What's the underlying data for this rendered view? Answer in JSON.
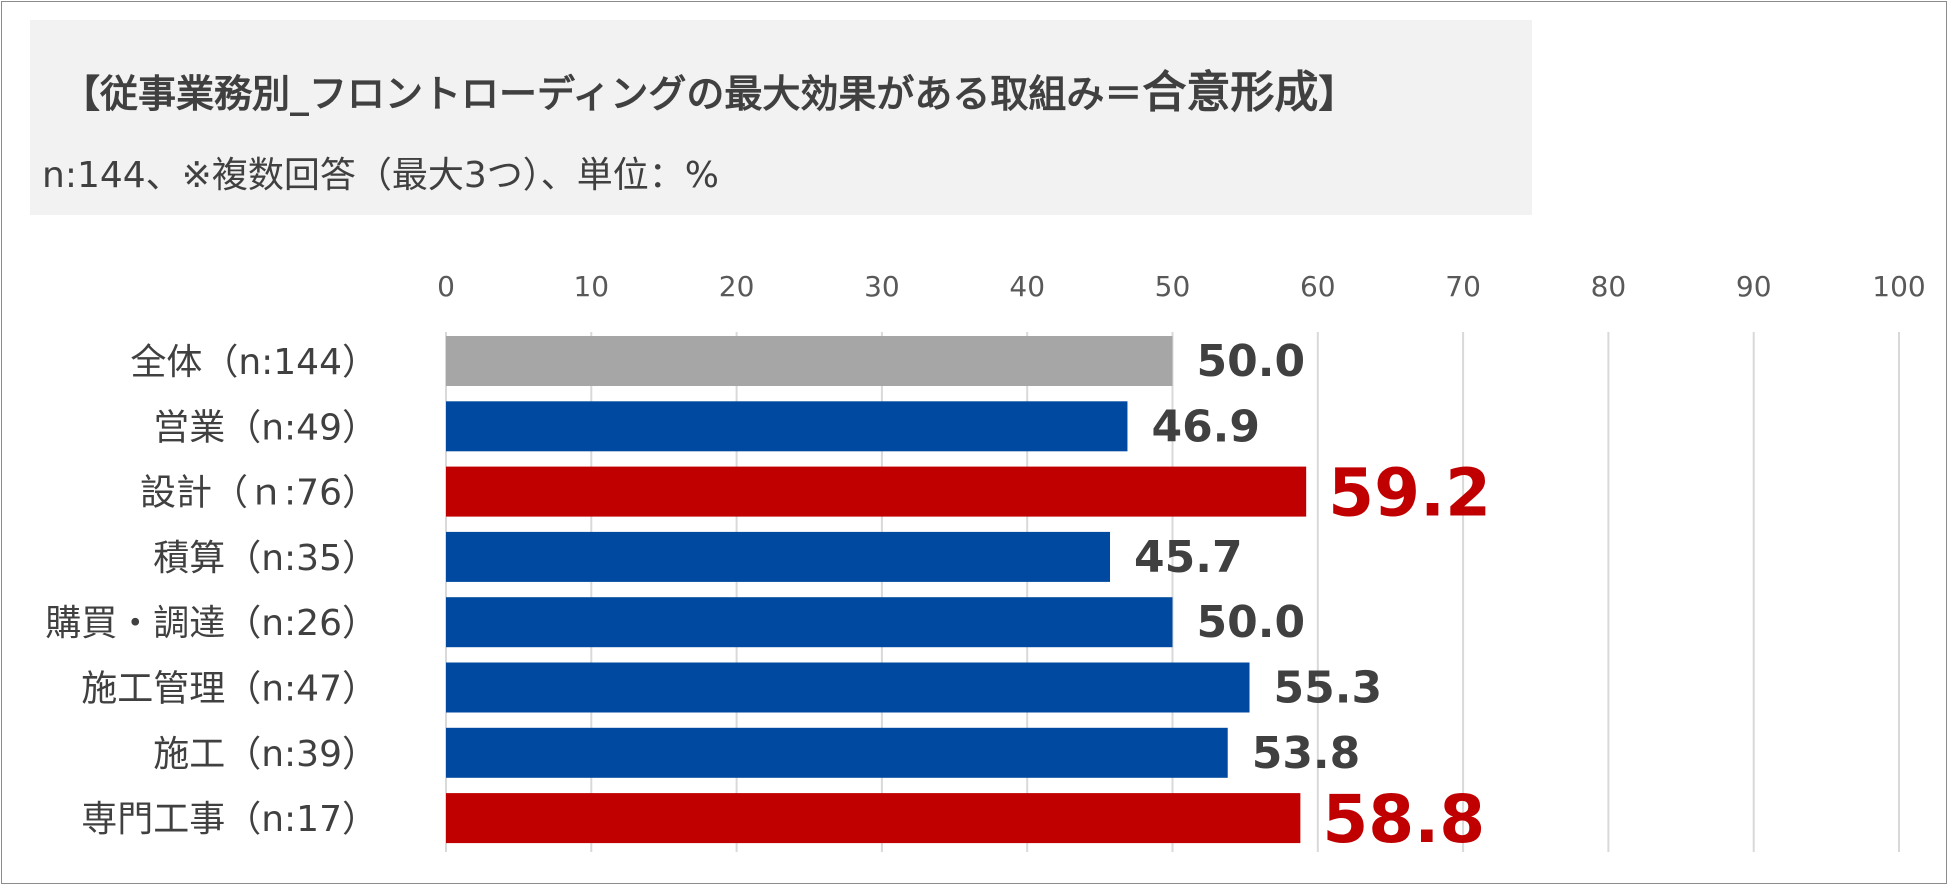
{
  "title": {
    "main": "【従事業務別_フロントローディングの最大効果がある取組み＝",
    "emphasis": "合意形成",
    "close": "】"
  },
  "subtitle": "n:144、※複数回答（最大3つ）、単位：%",
  "colors": {
    "total": "#a6a6a6",
    "normal": "#0049a0",
    "highlight": "#c00000",
    "grid": "#d9d9d9",
    "value_text": "#404040",
    "highlight_text": "#c00000"
  },
  "chart_data": {
    "type": "bar",
    "orientation": "horizontal",
    "title": "【従事業務別_フロントローディングの最大効果がある取組み＝合意形成】",
    "xlim": [
      0,
      100
    ],
    "ticks": [
      0,
      10,
      20,
      30,
      40,
      50,
      60,
      70,
      80,
      90,
      100
    ],
    "grid": true,
    "categories": [
      "全体（n:144）",
      "営業（n:49）",
      "設計（ｎ:76）",
      "積算（n:35）",
      "購買・調達（n:26）",
      "施工管理（n:47）",
      "施工（n:39）",
      "専門工事（n:17）"
    ],
    "values": [
      50.0,
      46.9,
      59.2,
      45.7,
      50.0,
      55.3,
      53.8,
      58.8
    ],
    "value_labels": [
      "50.0",
      "46.9",
      "59.2",
      "45.7",
      "50.0",
      "55.3",
      "53.8",
      "58.8"
    ],
    "styles": [
      "total",
      "normal",
      "highlight",
      "normal",
      "normal",
      "normal",
      "normal",
      "highlight"
    ]
  }
}
